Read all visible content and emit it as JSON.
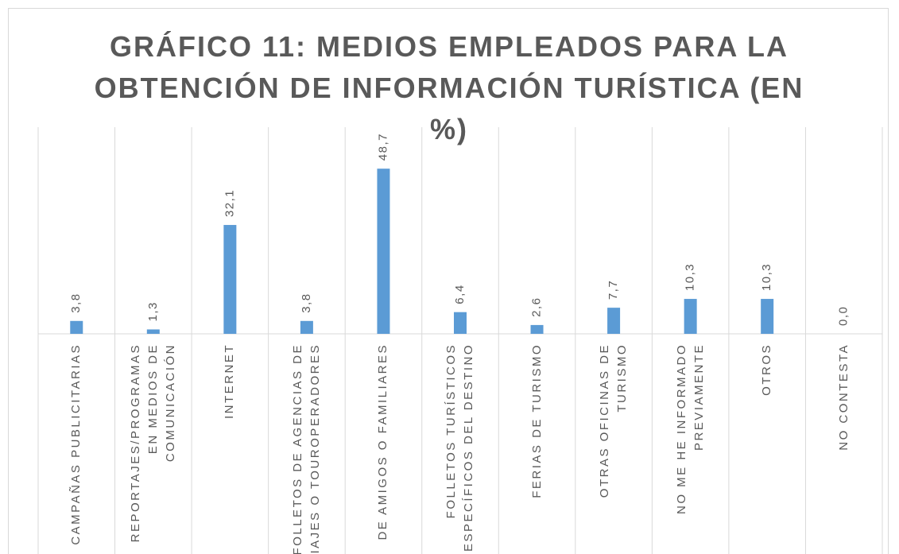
{
  "chart_data": {
    "type": "bar",
    "title": "GRÁFICO 11: MEDIOS EMPLEADOS PARA LA OBTENCIÓN DE INFORMACIÓN TURÍSTICA (EN %)",
    "categories": [
      "CAMPAÑAS PUBLICITARIAS",
      "REPORTAJES/PROGRAMAS EN MEDIOS DE COMUNICACIÓN",
      "INTERNET",
      "FOLLETOS DE AGENCIAS DE VIAJES O TOUROPERADORES",
      "DE AMIGOS O FAMILIARES",
      "FOLLETOS TURÍSTICOS ESPECÍFICOS DEL DESTINO",
      "FERIAS DE TURISMO",
      "OTRAS OFICINAS DE TURISMO",
      "NO ME HE INFORMADO PREVIAMENTE",
      "OTROS",
      "NO CONTESTA"
    ],
    "values": [
      3.8,
      1.3,
      32.1,
      3.8,
      48.7,
      6.4,
      2.6,
      7.7,
      10.3,
      10.3,
      0.0
    ],
    "value_labels": [
      "3,8",
      "1,3",
      "32,1",
      "3,8",
      "48,7",
      "6,4",
      "2,6",
      "7,7",
      "10,3",
      "10,3",
      "0,0"
    ],
    "color": "#5b9bd5",
    "ylim": [
      0,
      60
    ]
  }
}
